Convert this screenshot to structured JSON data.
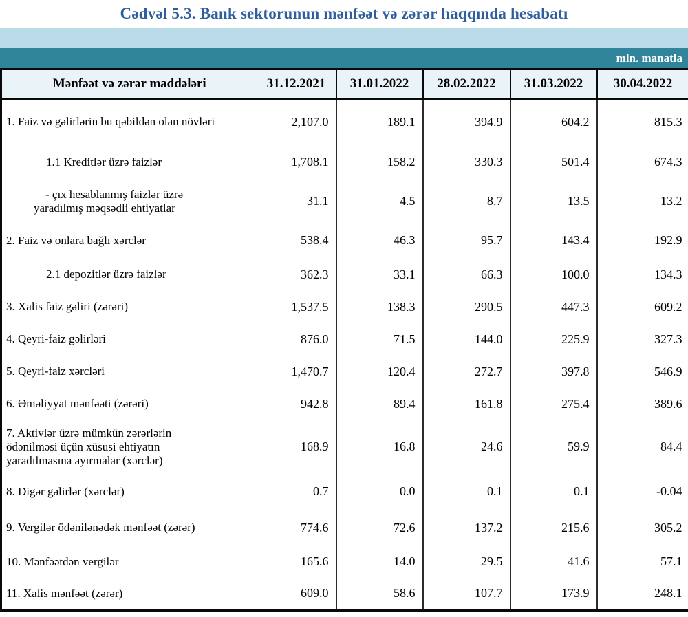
{
  "title": "Cədvəl 5.3. Bank sektorunun mənfəət və zərər haqqında hesabatı",
  "unit_label": "mln. manatla",
  "colors": {
    "title_blue": "#2E5E9E",
    "band_light": "#BADCE9",
    "band_teal": "#31859A",
    "header_bg": "#EAF4F8",
    "border_dark": "#0A0A0A"
  },
  "table": {
    "header": [
      "Mənfəət və zərər maddələri",
      "31.12.2021",
      "31.01.2022",
      "28.02.2022",
      "31.03.2022",
      "30.04.2022"
    ],
    "rows": [
      {
        "label": "1. Faiz və gəlirlərin bu qəbildən olan növləri",
        "indent": 0,
        "style": "single",
        "values": [
          "2,107.0",
          "189.1",
          "394.9",
          "604.2",
          "815.3"
        ]
      },
      {
        "label": "1.1 Kreditlər üzrə faizlər",
        "indent": 1,
        "style": "single",
        "values": [
          "1,708.1",
          "158.2",
          "330.3",
          "501.4",
          "674.3"
        ]
      },
      {
        "label": "- çıx hesablanmış faizlər üzrə\nyaradılmış məqsədli ehtiyatlar",
        "indent": 1,
        "style": "hanging",
        "values": [
          "31.1",
          "4.5",
          "8.7",
          "13.5",
          "13.2"
        ]
      },
      {
        "label": "2. Faiz və onlara bağlı xərclər",
        "indent": 0,
        "style": "single",
        "values": [
          "538.4",
          "46.3",
          "95.7",
          "143.4",
          "192.9"
        ]
      },
      {
        "label": "2.1 depozitlər üzrə faizlər",
        "indent": 1,
        "style": "single",
        "values": [
          "362.3",
          "33.1",
          "66.3",
          "100.0",
          "134.3"
        ]
      },
      {
        "label": "3. Xalis faiz gəliri (zərəri)",
        "indent": 0,
        "style": "single",
        "values": [
          "1,537.5",
          "138.3",
          "290.5",
          "447.3",
          "609.2"
        ]
      },
      {
        "label": "4. Qeyri-faiz gəlirləri",
        "indent": 0,
        "style": "single",
        "values": [
          "876.0",
          "71.5",
          "144.0",
          "225.9",
          "327.3"
        ]
      },
      {
        "label": "5. Qeyri-faiz xərcləri",
        "indent": 0,
        "style": "single",
        "values": [
          "1,470.7",
          "120.4",
          "272.7",
          "397.8",
          "546.9"
        ]
      },
      {
        "label": "6. Əməliyyat mənfəəti (zərəri)",
        "indent": 0,
        "style": "single",
        "values": [
          "942.8",
          "89.4",
          "161.8",
          "275.4",
          "389.6"
        ]
      },
      {
        "label": "7. Aktivlər üzrə mümkün zərərlərin\nödənilməsi üçün xüsusi ehtiyatın\nyaradılmasına ayırmalar (xərclər)",
        "indent": 0,
        "style": "multiline",
        "values": [
          "168.9",
          "16.8",
          "24.6",
          "59.9",
          "84.4"
        ]
      },
      {
        "label": "8. Digər gəlirlər (xərclər)",
        "indent": 0,
        "style": "single",
        "values": [
          "0.7",
          "0.0",
          "0.1",
          "0.1",
          "-0.04"
        ]
      },
      {
        "label": "9. Vergilər ödənilənədək mənfəət (zərər)",
        "indent": 0,
        "style": "single",
        "values": [
          "774.6",
          "72.6",
          "137.2",
          "215.6",
          "305.2"
        ]
      },
      {
        "label": "10. Mənfəətdən vergilər",
        "indent": 0,
        "style": "single",
        "values": [
          "165.6",
          "14.0",
          "29.5",
          "41.6",
          "57.1"
        ]
      },
      {
        "label": "11. Xalis mənfəət (zərər)",
        "indent": 0,
        "style": "single",
        "values": [
          "609.0",
          "58.6",
          "107.7",
          "173.9",
          "248.1"
        ]
      }
    ]
  }
}
